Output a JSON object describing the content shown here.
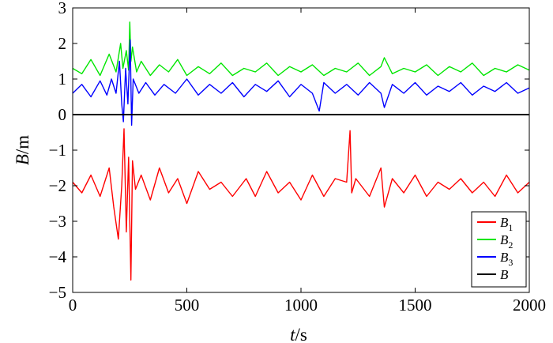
{
  "chart_data": {
    "type": "line",
    "title": "",
    "xlabel": {
      "main": "t",
      "unit": "/s"
    },
    "ylabel": {
      "main": "B",
      "unit": "/m"
    },
    "xlim": [
      0,
      2000
    ],
    "ylim": [
      -5,
      3
    ],
    "xticks": [
      {
        "value": 0,
        "label": "0"
      },
      {
        "value": 500,
        "label": "500"
      },
      {
        "value": 1000,
        "label": "1000"
      },
      {
        "value": 1500,
        "label": "1500"
      },
      {
        "value": 2000,
        "label": "2000"
      }
    ],
    "yticks": [
      {
        "value": 3,
        "label": "3"
      },
      {
        "value": 2,
        "label": "2"
      },
      {
        "value": 1,
        "label": "1"
      },
      {
        "value": 0,
        "label": "0"
      },
      {
        "value": -1,
        "label": "−1"
      },
      {
        "value": -2,
        "label": "−2"
      },
      {
        "value": -3,
        "label": "−3"
      },
      {
        "value": -4,
        "label": "−4"
      },
      {
        "value": -5,
        "label": "−5"
      }
    ],
    "grid": false,
    "legend_position": "bottom-right",
    "series": [
      {
        "name": "B",
        "sub": "1",
        "color": "#ff0000",
        "x": [
          0,
          40,
          80,
          120,
          160,
          180,
          200,
          215,
          225,
          235,
          245,
          255,
          262,
          275,
          300,
          340,
          380,
          420,
          460,
          500,
          550,
          600,
          650,
          700,
          760,
          800,
          850,
          900,
          950,
          1000,
          1050,
          1100,
          1150,
          1200,
          1215,
          1222,
          1240,
          1300,
          1350,
          1365,
          1400,
          1450,
          1500,
          1550,
          1600,
          1650,
          1700,
          1750,
          1800,
          1850,
          1900,
          1950,
          2000
        ],
        "y": [
          -1.9,
          -2.2,
          -1.7,
          -2.3,
          -1.5,
          -2.6,
          -3.5,
          -2.0,
          -0.4,
          -3.3,
          -1.2,
          -4.65,
          -1.3,
          -2.1,
          -1.7,
          -2.4,
          -1.5,
          -2.2,
          -1.8,
          -2.5,
          -1.6,
          -2.1,
          -1.9,
          -2.3,
          -1.8,
          -2.3,
          -1.6,
          -2.2,
          -1.9,
          -2.4,
          -1.7,
          -2.3,
          -1.8,
          -1.9,
          -0.45,
          -2.2,
          -1.8,
          -2.3,
          -1.5,
          -2.6,
          -1.8,
          -2.2,
          -1.7,
          -2.3,
          -1.9,
          -2.1,
          -1.8,
          -2.2,
          -1.9,
          -2.3,
          -1.7,
          -2.2,
          -1.9
        ]
      },
      {
        "name": "B",
        "sub": "2",
        "color": "#00e600",
        "x": [
          0,
          40,
          80,
          120,
          160,
          190,
          210,
          220,
          235,
          245,
          250,
          255,
          262,
          280,
          300,
          340,
          380,
          420,
          460,
          500,
          550,
          600,
          650,
          700,
          750,
          800,
          850,
          900,
          950,
          1000,
          1050,
          1100,
          1150,
          1200,
          1250,
          1300,
          1350,
          1365,
          1400,
          1450,
          1500,
          1550,
          1600,
          1650,
          1700,
          1750,
          1800,
          1850,
          1900,
          1950,
          2000
        ],
        "y": [
          1.3,
          1.15,
          1.55,
          1.1,
          1.7,
          1.2,
          2.0,
          1.3,
          1.8,
          1.25,
          2.6,
          1.5,
          1.9,
          1.2,
          1.5,
          1.1,
          1.4,
          1.2,
          1.55,
          1.1,
          1.35,
          1.15,
          1.45,
          1.1,
          1.3,
          1.2,
          1.45,
          1.1,
          1.35,
          1.2,
          1.4,
          1.1,
          1.3,
          1.2,
          1.45,
          1.1,
          1.35,
          1.6,
          1.15,
          1.3,
          1.2,
          1.4,
          1.1,
          1.35,
          1.2,
          1.45,
          1.1,
          1.3,
          1.2,
          1.4,
          1.25
        ]
      },
      {
        "name": "B",
        "sub": "3",
        "color": "#0000ff",
        "x": [
          0,
          40,
          80,
          120,
          150,
          170,
          190,
          205,
          215,
          222,
          232,
          242,
          252,
          258,
          265,
          290,
          320,
          360,
          400,
          450,
          500,
          550,
          600,
          650,
          700,
          750,
          800,
          850,
          900,
          950,
          1000,
          1050,
          1080,
          1100,
          1150,
          1200,
          1250,
          1300,
          1350,
          1365,
          1400,
          1450,
          1500,
          1550,
          1600,
          1650,
          1700,
          1750,
          1800,
          1850,
          1900,
          1950,
          2000
        ],
        "y": [
          0.6,
          0.85,
          0.5,
          0.95,
          0.55,
          1.0,
          0.6,
          1.5,
          0.3,
          -0.2,
          1.3,
          0.3,
          2.1,
          -0.3,
          1.0,
          0.6,
          0.9,
          0.55,
          0.85,
          0.6,
          1.0,
          0.55,
          0.85,
          0.6,
          0.9,
          0.5,
          0.85,
          0.65,
          0.95,
          0.5,
          0.85,
          0.6,
          0.1,
          0.9,
          0.6,
          0.85,
          0.55,
          0.9,
          0.6,
          0.2,
          0.85,
          0.6,
          0.9,
          0.55,
          0.8,
          0.65,
          0.9,
          0.55,
          0.8,
          0.65,
          0.9,
          0.6,
          0.75
        ]
      },
      {
        "name": "B",
        "sub": "",
        "color": "#000000",
        "x": [
          0,
          2000
        ],
        "y": [
          0,
          0
        ]
      }
    ]
  }
}
